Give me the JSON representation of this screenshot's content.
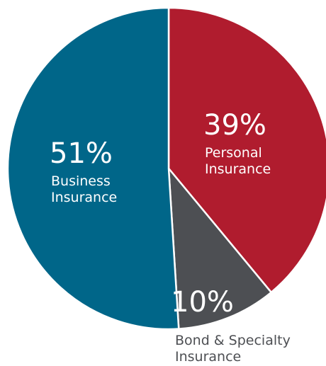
{
  "chart_data": {
    "type": "pie",
    "slices": [
      {
        "name": "Personal Insurance",
        "value": 39,
        "percent_label": "39%",
        "label_lines": [
          "Personal",
          "Insurance"
        ],
        "color": "#b01c2e"
      },
      {
        "name": "Bond & Specialty Insurance",
        "value": 10,
        "percent_label": "10%",
        "label_lines": [
          "Bond & Specialty",
          "Insurance"
        ],
        "color": "#4d4f53"
      },
      {
        "name": "Business Insurance",
        "value": 51,
        "percent_label": "51%",
        "label_lines": [
          "Business",
          "Insurance"
        ],
        "color": "#006689"
      }
    ],
    "start_angle": "12 o'clock",
    "direction": "clockwise",
    "slice_separator_color": "#ffffff",
    "label_color_inside": "#ffffff",
    "label_color_outside": "#4d4f53"
  }
}
